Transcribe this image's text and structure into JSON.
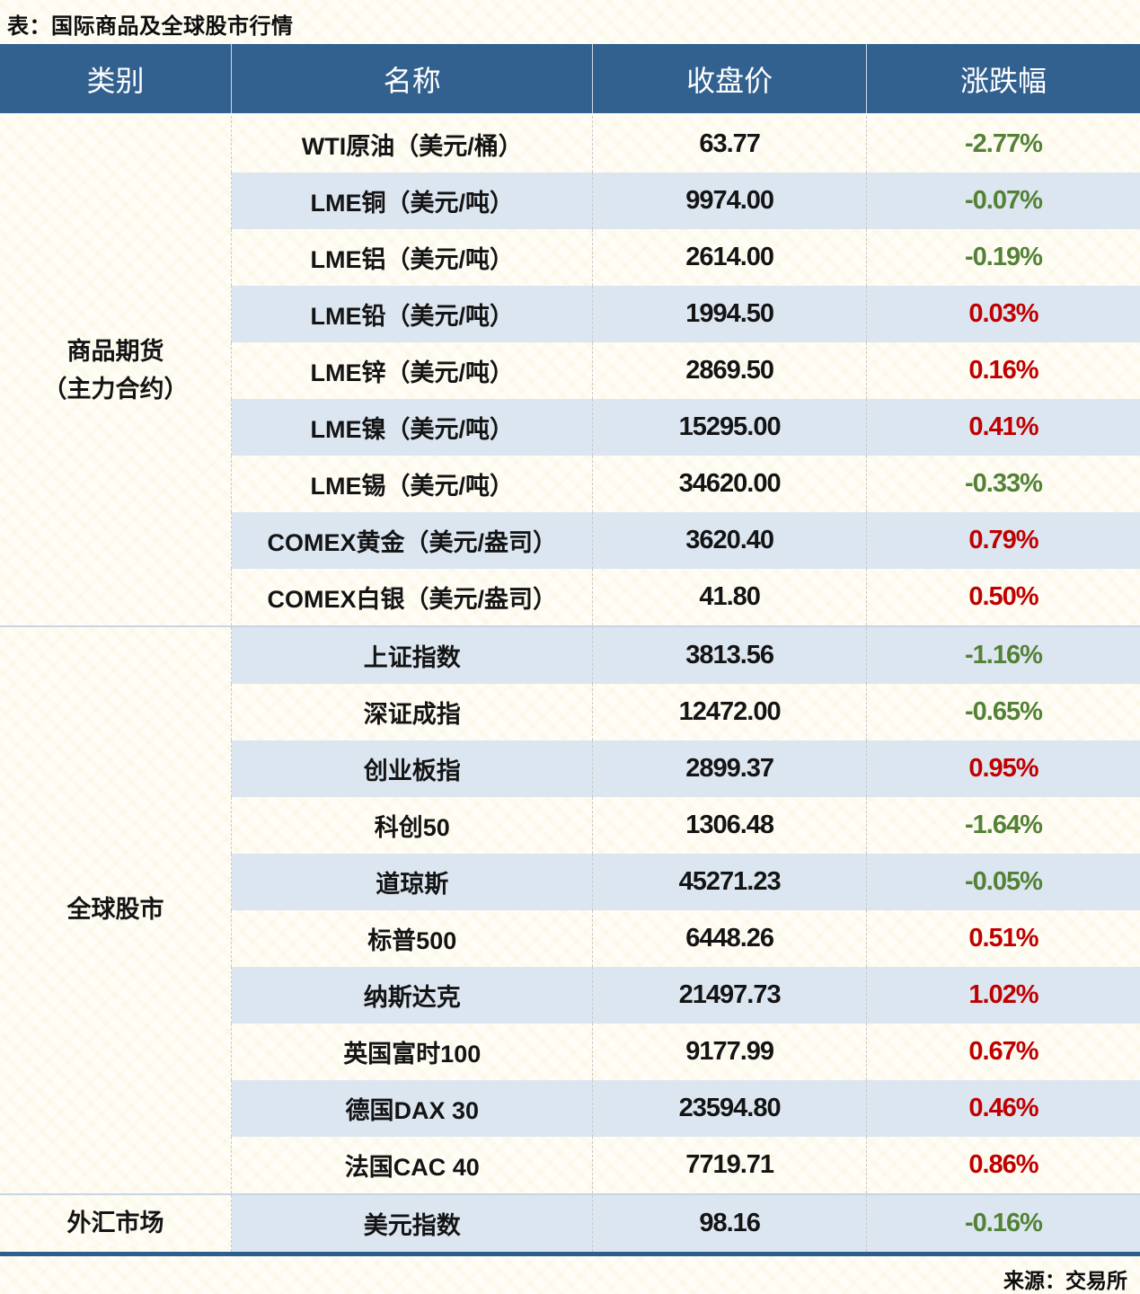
{
  "page_title": "表：国际商品及全球股市行情",
  "source_note": "来源：交易所",
  "colors": {
    "header_bg": "#33618f",
    "header_text": "#ffffff",
    "row_alt_bg": "#dce6f1",
    "up": "#c00000",
    "down": "#538135",
    "bottom_rule": "#2f5d8d"
  },
  "chart_data": {
    "type": "table",
    "title": "表：国际商品及全球股市行情",
    "columns": [
      "类别",
      "名称",
      "收盘价",
      "涨跌幅"
    ],
    "groups": [
      {
        "category_lines": [
          "商品期货",
          "（主力合约）"
        ],
        "rows": [
          {
            "name": "WTI原油（美元/桶）",
            "close": "63.77",
            "change": "-2.77%",
            "direction": "down"
          },
          {
            "name": "LME铜（美元/吨）",
            "close": "9974.00",
            "change": "-0.07%",
            "direction": "down"
          },
          {
            "name": "LME铝（美元/吨）",
            "close": "2614.00",
            "change": "-0.19%",
            "direction": "down"
          },
          {
            "name": "LME铅（美元/吨）",
            "close": "1994.50",
            "change": "0.03%",
            "direction": "up"
          },
          {
            "name": "LME锌（美元/吨）",
            "close": "2869.50",
            "change": "0.16%",
            "direction": "up"
          },
          {
            "name": "LME镍（美元/吨）",
            "close": "15295.00",
            "change": "0.41%",
            "direction": "up"
          },
          {
            "name": "LME锡（美元/吨）",
            "close": "34620.00",
            "change": "-0.33%",
            "direction": "down"
          },
          {
            "name": "COMEX黄金（美元/盎司）",
            "close": "3620.40",
            "change": "0.79%",
            "direction": "up"
          },
          {
            "name": "COMEX白银（美元/盎司）",
            "close": "41.80",
            "change": "0.50%",
            "direction": "up"
          }
        ]
      },
      {
        "category_lines": [
          "全球股市"
        ],
        "rows": [
          {
            "name": "上证指数",
            "close": "3813.56",
            "change": "-1.16%",
            "direction": "down"
          },
          {
            "name": "深证成指",
            "close": "12472.00",
            "change": "-0.65%",
            "direction": "down"
          },
          {
            "name": "创业板指",
            "close": "2899.37",
            "change": "0.95%",
            "direction": "up"
          },
          {
            "name": "科创50",
            "close": "1306.48",
            "change": "-1.64%",
            "direction": "down"
          },
          {
            "name": "道琼斯",
            "close": "45271.23",
            "change": "-0.05%",
            "direction": "down"
          },
          {
            "name": "标普500",
            "close": "6448.26",
            "change": "0.51%",
            "direction": "up"
          },
          {
            "name": "纳斯达克",
            "close": "21497.73",
            "change": "1.02%",
            "direction": "up"
          },
          {
            "name": "英国富时100",
            "close": "9177.99",
            "change": "0.67%",
            "direction": "up"
          },
          {
            "name": "德国DAX 30",
            "close": "23594.80",
            "change": "0.46%",
            "direction": "up"
          },
          {
            "name": "法国CAC 40",
            "close": "7719.71",
            "change": "0.86%",
            "direction": "up"
          }
        ]
      },
      {
        "category_lines": [
          "外汇市场"
        ],
        "rows": [
          {
            "name": "美元指数",
            "close": "98.16",
            "change": "-0.16%",
            "direction": "down"
          }
        ]
      }
    ]
  }
}
